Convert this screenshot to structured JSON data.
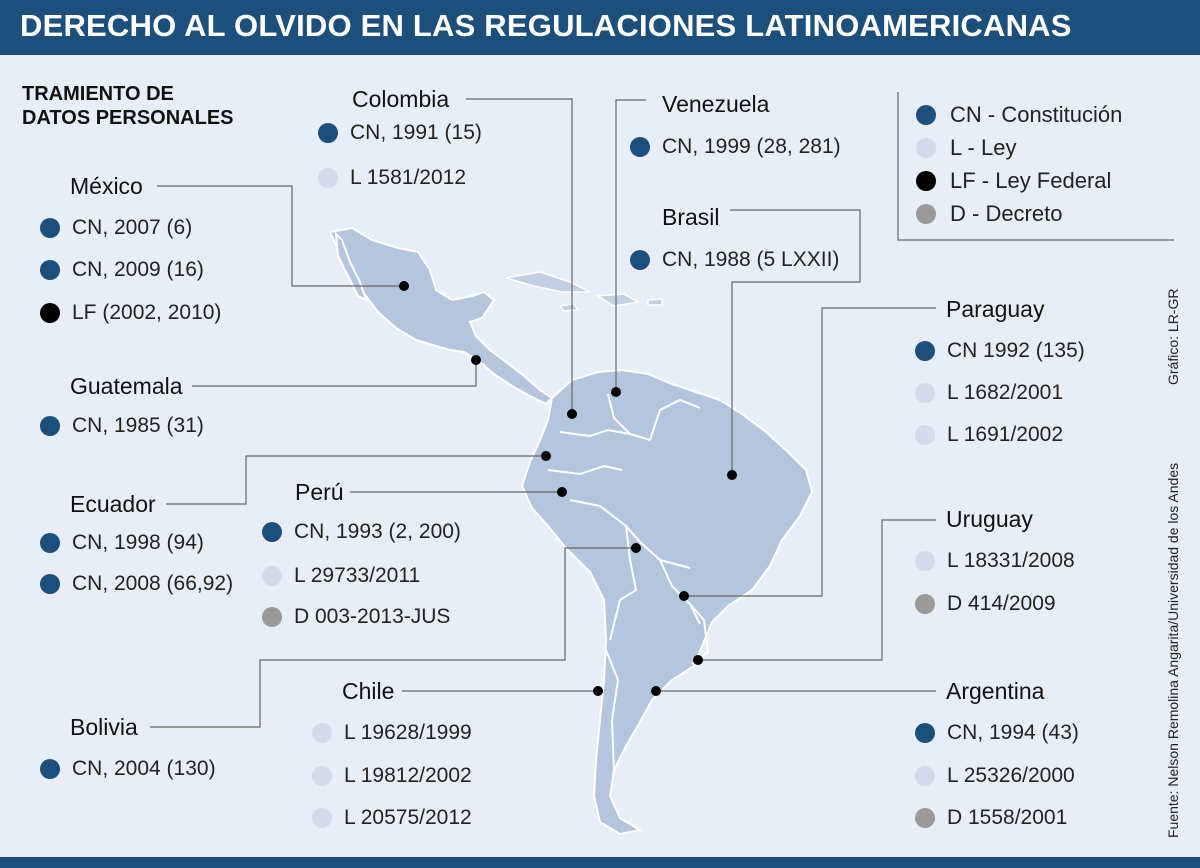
{
  "title": "DERECHO AL OLVIDO EN LAS REGULACIONES LATINOAMERICANAS",
  "subtitle": [
    "TRAMIENTO DE",
    "DATOS PERSONALES"
  ],
  "colors": {
    "CN": "#1d4f7c",
    "L": "#d3dbea",
    "LF": "#000000",
    "D": "#9a9a9a",
    "header": "#1d4f7c",
    "land": "#b5c5dd",
    "water": "#e8eef8"
  },
  "legend": [
    {
      "type": "CN",
      "label": "CN - Constitución"
    },
    {
      "type": "L",
      "label": "L - Ley"
    },
    {
      "type": "LF",
      "label": "LF - Ley Federal"
    },
    {
      "type": "D",
      "label": "D - Decreto"
    }
  ],
  "countries": {
    "mexico": {
      "name": "México",
      "entries": [
        {
          "type": "CN",
          "text": "CN, 2007 (6)"
        },
        {
          "type": "CN",
          "text": "CN, 2009 (16)"
        },
        {
          "type": "LF",
          "text": "LF (2002, 2010)"
        }
      ]
    },
    "colombia": {
      "name": "Colombia",
      "entries": [
        {
          "type": "CN",
          "text": "CN, 1991 (15)"
        },
        {
          "type": "L",
          "text": "L 1581/2012"
        }
      ]
    },
    "venezuela": {
      "name": "Venezuela",
      "entries": [
        {
          "type": "CN",
          "text": "CN, 1999 (28, 281)"
        }
      ]
    },
    "brasil": {
      "name": "Brasil",
      "entries": [
        {
          "type": "CN",
          "text": "CN, 1988 (5 LXXII)"
        }
      ]
    },
    "guatemala": {
      "name": "Guatemala",
      "entries": [
        {
          "type": "CN",
          "text": "CN, 1985 (31)"
        }
      ]
    },
    "paraguay": {
      "name": "Paraguay",
      "entries": [
        {
          "type": "CN",
          "text": "CN 1992 (135)"
        },
        {
          "type": "L",
          "text": "L 1682/2001"
        },
        {
          "type": "L",
          "text": "L 1691/2002"
        }
      ]
    },
    "ecuador": {
      "name": "Ecuador",
      "entries": [
        {
          "type": "CN",
          "text": "CN, 1998 (94)"
        },
        {
          "type": "CN",
          "text": "CN, 2008 (66,92)"
        }
      ]
    },
    "peru": {
      "name": "Perú",
      "entries": [
        {
          "type": "CN",
          "text": "CN, 1993 (2, 200)"
        },
        {
          "type": "L",
          "text": "L 29733/2011"
        },
        {
          "type": "D",
          "text": "D 003-2013-JUS"
        }
      ]
    },
    "uruguay": {
      "name": "Uruguay",
      "entries": [
        {
          "type": "L",
          "text": "L 18331/2008"
        },
        {
          "type": "D",
          "text": "D 414/2009"
        }
      ]
    },
    "bolivia": {
      "name": "Bolivia",
      "entries": [
        {
          "type": "CN",
          "text": "CN, 2004 (130)"
        }
      ]
    },
    "chile": {
      "name": "Chile",
      "entries": [
        {
          "type": "L",
          "text": "L 19628/1999"
        },
        {
          "type": "L",
          "text": "L 19812/2002"
        },
        {
          "type": "L",
          "text": "L 20575/2012"
        }
      ]
    },
    "argentina": {
      "name": "Argentina",
      "entries": [
        {
          "type": "CN",
          "text": "CN, 1994 (43)"
        },
        {
          "type": "L",
          "text": "L 25326/2000"
        },
        {
          "type": "D",
          "text": "D 1558/2001"
        }
      ]
    }
  },
  "credits": {
    "grafico": "Gráfico: LR-GR",
    "fuente": "Fuente: Nelson Remolina Angarita/Universidad de los Andes"
  }
}
